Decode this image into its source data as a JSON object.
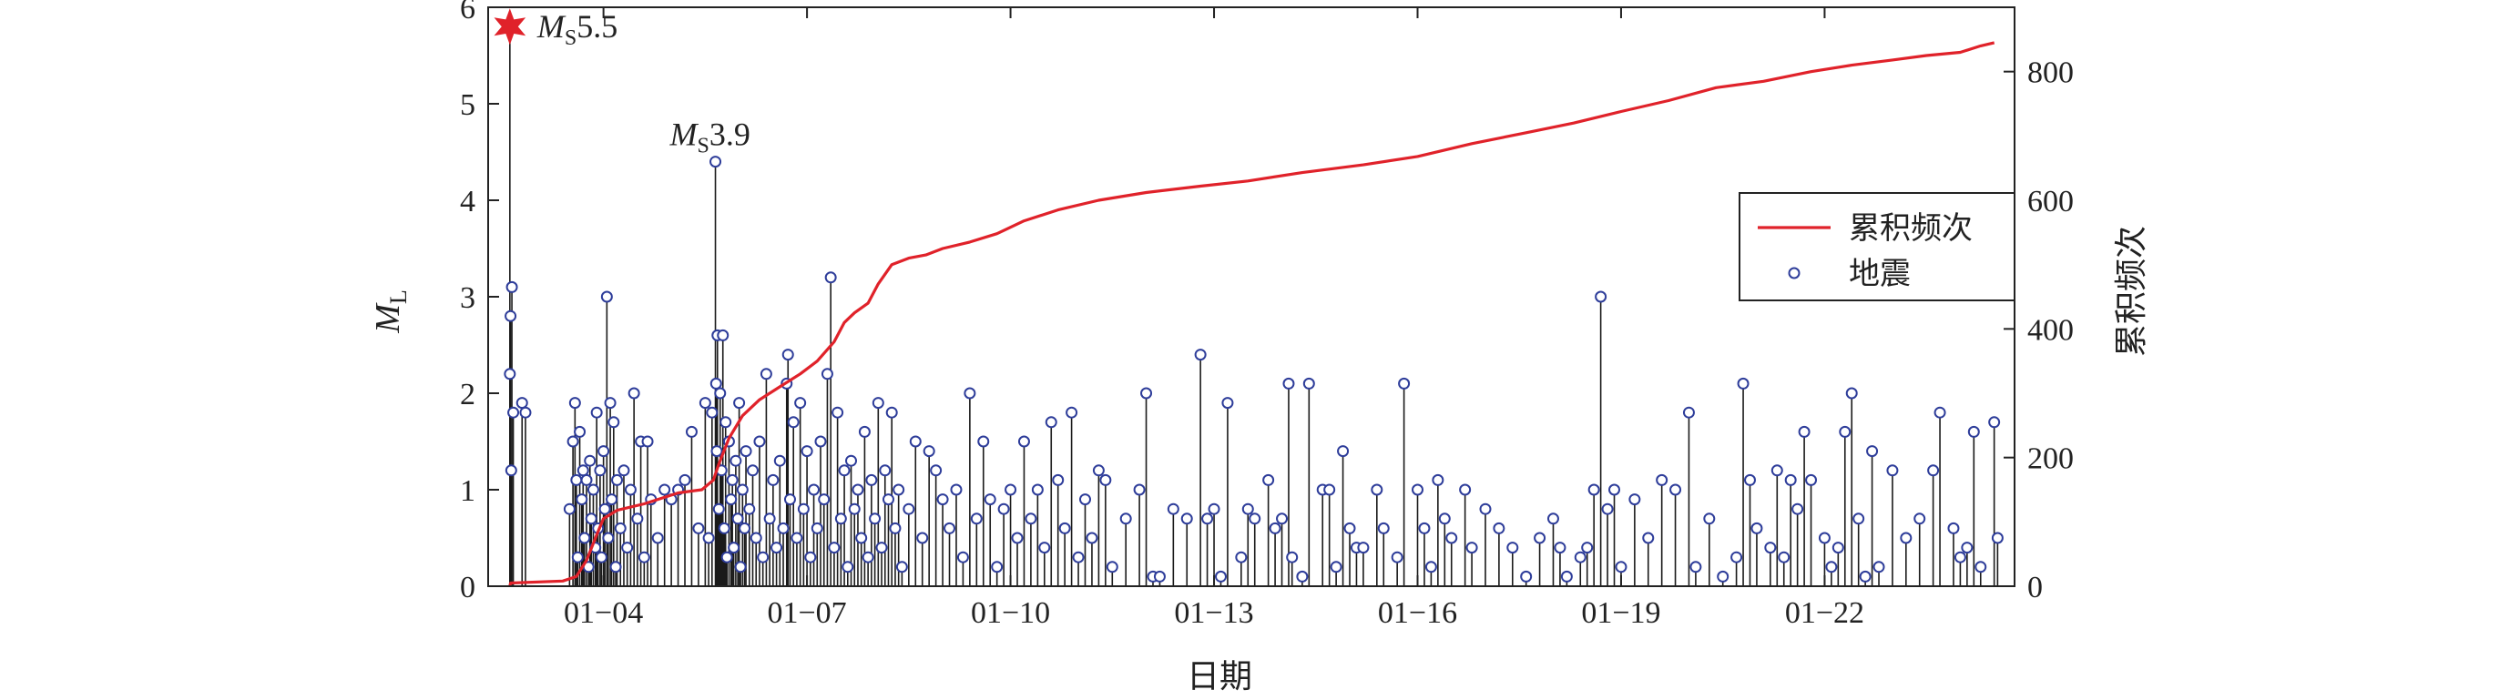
{
  "chart_data": {
    "type": "stem + line",
    "xlabel": "日期",
    "ylabel_main": "M",
    "ylabel_sub": "L",
    "y2label": "累积频次",
    "xticks": [
      "01−04",
      "01−07",
      "01−10",
      "01−13",
      "01−16",
      "01−19",
      "01−22"
    ],
    "xtick_days": [
      4,
      7,
      10,
      13,
      16,
      19,
      22
    ],
    "xlim": [
      2.3,
      24.8
    ],
    "ylim": [
      0,
      6
    ],
    "y2lim": [
      0,
      900
    ],
    "yticks": [
      "0",
      "1",
      "2",
      "3",
      "4",
      "5",
      "6"
    ],
    "y2ticks": [
      "0",
      "200",
      "400",
      "600",
      "800"
    ],
    "legend": {
      "placement": "right",
      "line_label": "累积频次",
      "marker_label": "地震"
    },
    "annotations": [
      {
        "main": "M",
        "sub": "S",
        "value": "5.5",
        "x": 2.62,
        "y": 5.8
      },
      {
        "main": "M",
        "sub": "S",
        "value": "3.9",
        "x": 5.65,
        "y": 4.4
      }
    ],
    "colors": {
      "line": "#e0222a",
      "marker": "#2e3d9a",
      "stem": "#1a1a1a",
      "star": "#e0222a"
    },
    "mainshock": {
      "x": 2.62,
      "y": 5.8
    },
    "cumulative": {
      "x": [
        2.62,
        2.63,
        3.4,
        3.6,
        3.75,
        3.9,
        4.0,
        4.2,
        4.6,
        5.1,
        5.45,
        5.62,
        5.7,
        5.85,
        6.05,
        6.3,
        6.6,
        6.9,
        7.15,
        7.4,
        7.55,
        7.7,
        7.9,
        8.05,
        8.25,
        8.5,
        8.75,
        9.0,
        9.4,
        9.8,
        10.2,
        10.7,
        11.3,
        12.0,
        12.8,
        13.5,
        14.3,
        15.2,
        16.0,
        16.8,
        17.6,
        18.3,
        19.0,
        19.7,
        20.4,
        21.1,
        21.8,
        22.4,
        23.0,
        23.5,
        24.0,
        24.3,
        24.5
      ],
      "y": [
        0,
        5,
        8,
        15,
        40,
        80,
        105,
        118,
        128,
        145,
        150,
        165,
        190,
        230,
        265,
        290,
        310,
        330,
        350,
        380,
        410,
        425,
        440,
        470,
        500,
        510,
        515,
        525,
        535,
        548,
        568,
        585,
        600,
        612,
        622,
        630,
        643,
        655,
        668,
        688,
        705,
        720,
        738,
        755,
        775,
        785,
        800,
        810,
        818,
        825,
        830,
        840,
        845
      ]
    },
    "quakes": [
      {
        "x": 2.62,
        "y": 5.8
      },
      {
        "x": 2.62,
        "y": 2.2
      },
      {
        "x": 2.63,
        "y": 2.8
      },
      {
        "x": 2.64,
        "y": 1.2
      },
      {
        "x": 2.65,
        "y": 3.1
      },
      {
        "x": 2.67,
        "y": 1.8
      },
      {
        "x": 2.8,
        "y": 1.9
      },
      {
        "x": 2.85,
        "y": 1.8
      },
      {
        "x": 3.5,
        "y": 0.8
      },
      {
        "x": 3.55,
        "y": 1.5
      },
      {
        "x": 3.58,
        "y": 1.9
      },
      {
        "x": 3.6,
        "y": 1.1
      },
      {
        "x": 3.62,
        "y": 0.3
      },
      {
        "x": 3.65,
        "y": 1.6
      },
      {
        "x": 3.68,
        "y": 0.9
      },
      {
        "x": 3.7,
        "y": 1.2
      },
      {
        "x": 3.72,
        "y": 0.5
      },
      {
        "x": 3.75,
        "y": 1.1
      },
      {
        "x": 3.78,
        "y": 0.2
      },
      {
        "x": 3.8,
        "y": 1.3
      },
      {
        "x": 3.82,
        "y": 0.7
      },
      {
        "x": 3.85,
        "y": 1.0
      },
      {
        "x": 3.88,
        "y": 0.4
      },
      {
        "x": 3.9,
        "y": 1.8
      },
      {
        "x": 3.92,
        "y": 0.6
      },
      {
        "x": 3.95,
        "y": 1.2
      },
      {
        "x": 3.97,
        "y": 0.3
      },
      {
        "x": 4.0,
        "y": 1.4
      },
      {
        "x": 4.02,
        "y": 0.8
      },
      {
        "x": 4.05,
        "y": 3.0
      },
      {
        "x": 4.07,
        "y": 0.5
      },
      {
        "x": 4.1,
        "y": 1.9
      },
      {
        "x": 4.12,
        "y": 0.9
      },
      {
        "x": 4.15,
        "y": 1.7
      },
      {
        "x": 4.18,
        "y": 0.2
      },
      {
        "x": 4.2,
        "y": 1.1
      },
      {
        "x": 4.25,
        "y": 0.6
      },
      {
        "x": 4.3,
        "y": 1.2
      },
      {
        "x": 4.35,
        "y": 0.4
      },
      {
        "x": 4.4,
        "y": 1.0
      },
      {
        "x": 4.45,
        "y": 2.0
      },
      {
        "x": 4.5,
        "y": 0.7
      },
      {
        "x": 4.55,
        "y": 1.5
      },
      {
        "x": 4.6,
        "y": 0.3
      },
      {
        "x": 4.65,
        "y": 1.5
      },
      {
        "x": 4.7,
        "y": 0.9
      },
      {
        "x": 4.8,
        "y": 0.5
      },
      {
        "x": 4.9,
        "y": 1.0
      },
      {
        "x": 5.0,
        "y": 0.9
      },
      {
        "x": 5.1,
        "y": 1.0
      },
      {
        "x": 5.2,
        "y": 1.1
      },
      {
        "x": 5.3,
        "y": 1.6
      },
      {
        "x": 5.4,
        "y": 0.6
      },
      {
        "x": 5.5,
        "y": 1.9
      },
      {
        "x": 5.55,
        "y": 0.5
      },
      {
        "x": 5.6,
        "y": 1.8
      },
      {
        "x": 5.65,
        "y": 4.4
      },
      {
        "x": 5.66,
        "y": 2.1
      },
      {
        "x": 5.67,
        "y": 1.4
      },
      {
        "x": 5.68,
        "y": 2.6
      },
      {
        "x": 5.7,
        "y": 0.8
      },
      {
        "x": 5.72,
        "y": 2.0
      },
      {
        "x": 5.74,
        "y": 1.2
      },
      {
        "x": 5.76,
        "y": 2.6
      },
      {
        "x": 5.78,
        "y": 0.6
      },
      {
        "x": 5.8,
        "y": 1.7
      },
      {
        "x": 5.82,
        "y": 0.3
      },
      {
        "x": 5.85,
        "y": 1.5
      },
      {
        "x": 5.88,
        "y": 0.9
      },
      {
        "x": 5.9,
        "y": 1.1
      },
      {
        "x": 5.92,
        "y": 0.4
      },
      {
        "x": 5.95,
        "y": 1.3
      },
      {
        "x": 5.98,
        "y": 0.7
      },
      {
        "x": 6.0,
        "y": 1.9
      },
      {
        "x": 6.02,
        "y": 0.2
      },
      {
        "x": 6.05,
        "y": 1.0
      },
      {
        "x": 6.08,
        "y": 0.6
      },
      {
        "x": 6.1,
        "y": 1.4
      },
      {
        "x": 6.15,
        "y": 0.8
      },
      {
        "x": 6.2,
        "y": 1.2
      },
      {
        "x": 6.25,
        "y": 0.5
      },
      {
        "x": 6.3,
        "y": 1.5
      },
      {
        "x": 6.35,
        "y": 0.3
      },
      {
        "x": 6.4,
        "y": 2.2
      },
      {
        "x": 6.45,
        "y": 0.7
      },
      {
        "x": 6.5,
        "y": 1.1
      },
      {
        "x": 6.55,
        "y": 0.4
      },
      {
        "x": 6.6,
        "y": 1.3
      },
      {
        "x": 6.65,
        "y": 0.6
      },
      {
        "x": 6.7,
        "y": 2.1
      },
      {
        "x": 6.72,
        "y": 2.4
      },
      {
        "x": 6.75,
        "y": 0.9
      },
      {
        "x": 6.8,
        "y": 1.7
      },
      {
        "x": 6.85,
        "y": 0.5
      },
      {
        "x": 6.9,
        "y": 1.9
      },
      {
        "x": 6.95,
        "y": 0.8
      },
      {
        "x": 7.0,
        "y": 1.4
      },
      {
        "x": 7.05,
        "y": 0.3
      },
      {
        "x": 7.1,
        "y": 1.0
      },
      {
        "x": 7.15,
        "y": 0.6
      },
      {
        "x": 7.2,
        "y": 1.5
      },
      {
        "x": 7.25,
        "y": 0.9
      },
      {
        "x": 7.3,
        "y": 2.2
      },
      {
        "x": 7.35,
        "y": 3.2
      },
      {
        "x": 7.4,
        "y": 0.4
      },
      {
        "x": 7.45,
        "y": 1.8
      },
      {
        "x": 7.5,
        "y": 0.7
      },
      {
        "x": 7.55,
        "y": 1.2
      },
      {
        "x": 7.6,
        "y": 0.2
      },
      {
        "x": 7.65,
        "y": 1.3
      },
      {
        "x": 7.7,
        "y": 0.8
      },
      {
        "x": 7.75,
        "y": 1.0
      },
      {
        "x": 7.8,
        "y": 0.5
      },
      {
        "x": 7.85,
        "y": 1.6
      },
      {
        "x": 7.9,
        "y": 0.3
      },
      {
        "x": 7.95,
        "y": 1.1
      },
      {
        "x": 8.0,
        "y": 0.7
      },
      {
        "x": 8.05,
        "y": 1.9
      },
      {
        "x": 8.1,
        "y": 0.4
      },
      {
        "x": 8.15,
        "y": 1.2
      },
      {
        "x": 8.2,
        "y": 0.9
      },
      {
        "x": 8.25,
        "y": 1.8
      },
      {
        "x": 8.3,
        "y": 0.6
      },
      {
        "x": 8.35,
        "y": 1.0
      },
      {
        "x": 8.4,
        "y": 0.2
      },
      {
        "x": 8.5,
        "y": 0.8
      },
      {
        "x": 8.6,
        "y": 1.5
      },
      {
        "x": 8.7,
        "y": 0.5
      },
      {
        "x": 8.8,
        "y": 1.4
      },
      {
        "x": 8.9,
        "y": 1.2
      },
      {
        "x": 9.0,
        "y": 0.9
      },
      {
        "x": 9.1,
        "y": 0.6
      },
      {
        "x": 9.2,
        "y": 1.0
      },
      {
        "x": 9.3,
        "y": 0.3
      },
      {
        "x": 9.4,
        "y": 2.0
      },
      {
        "x": 9.5,
        "y": 0.7
      },
      {
        "x": 9.6,
        "y": 1.5
      },
      {
        "x": 9.7,
        "y": 0.9
      },
      {
        "x": 9.8,
        "y": 0.2
      },
      {
        "x": 9.9,
        "y": 0.8
      },
      {
        "x": 10.0,
        "y": 1.0
      },
      {
        "x": 10.1,
        "y": 0.5
      },
      {
        "x": 10.2,
        "y": 1.5
      },
      {
        "x": 10.3,
        "y": 0.7
      },
      {
        "x": 10.4,
        "y": 1.0
      },
      {
        "x": 10.5,
        "y": 0.4
      },
      {
        "x": 10.6,
        "y": 1.7
      },
      {
        "x": 10.7,
        "y": 1.1
      },
      {
        "x": 10.8,
        "y": 0.6
      },
      {
        "x": 10.9,
        "y": 1.8
      },
      {
        "x": 11.0,
        "y": 0.3
      },
      {
        "x": 11.1,
        "y": 0.9
      },
      {
        "x": 11.2,
        "y": 0.5
      },
      {
        "x": 11.3,
        "y": 1.2
      },
      {
        "x": 11.4,
        "y": 1.1
      },
      {
        "x": 11.5,
        "y": 0.2
      },
      {
        "x": 11.7,
        "y": 0.7
      },
      {
        "x": 11.9,
        "y": 1.0
      },
      {
        "x": 12.0,
        "y": 2.0
      },
      {
        "x": 12.1,
        "y": 0.1
      },
      {
        "x": 12.2,
        "y": 0.1
      },
      {
        "x": 12.4,
        "y": 0.8
      },
      {
        "x": 12.6,
        "y": 0.7
      },
      {
        "x": 12.8,
        "y": 2.4
      },
      {
        "x": 12.9,
        "y": 0.7
      },
      {
        "x": 13.0,
        "y": 0.8
      },
      {
        "x": 13.1,
        "y": 0.1
      },
      {
        "x": 13.2,
        "y": 1.9
      },
      {
        "x": 13.4,
        "y": 0.3
      },
      {
        "x": 13.5,
        "y": 0.8
      },
      {
        "x": 13.6,
        "y": 0.7
      },
      {
        "x": 13.8,
        "y": 1.1
      },
      {
        "x": 13.9,
        "y": 0.6
      },
      {
        "x": 14.0,
        "y": 0.7
      },
      {
        "x": 14.1,
        "y": 2.1
      },
      {
        "x": 14.15,
        "y": 0.3
      },
      {
        "x": 14.3,
        "y": 0.1
      },
      {
        "x": 14.4,
        "y": 2.1
      },
      {
        "x": 14.6,
        "y": 1.0
      },
      {
        "x": 14.7,
        "y": 1.0
      },
      {
        "x": 14.8,
        "y": 0.2
      },
      {
        "x": 14.9,
        "y": 1.4
      },
      {
        "x": 15.0,
        "y": 0.6
      },
      {
        "x": 15.1,
        "y": 0.4
      },
      {
        "x": 15.2,
        "y": 0.4
      },
      {
        "x": 15.4,
        "y": 1.0
      },
      {
        "x": 15.5,
        "y": 0.6
      },
      {
        "x": 15.7,
        "y": 0.3
      },
      {
        "x": 15.8,
        "y": 2.1
      },
      {
        "x": 16.0,
        "y": 1.0
      },
      {
        "x": 16.1,
        "y": 0.6
      },
      {
        "x": 16.2,
        "y": 0.2
      },
      {
        "x": 16.3,
        "y": 1.1
      },
      {
        "x": 16.4,
        "y": 0.7
      },
      {
        "x": 16.5,
        "y": 0.5
      },
      {
        "x": 16.7,
        "y": 1.0
      },
      {
        "x": 16.8,
        "y": 0.4
      },
      {
        "x": 17.0,
        "y": 0.8
      },
      {
        "x": 17.2,
        "y": 0.6
      },
      {
        "x": 17.4,
        "y": 0.4
      },
      {
        "x": 17.6,
        "y": 0.1
      },
      {
        "x": 17.8,
        "y": 0.5
      },
      {
        "x": 18.0,
        "y": 0.7
      },
      {
        "x": 18.1,
        "y": 0.4
      },
      {
        "x": 18.2,
        "y": 0.1
      },
      {
        "x": 18.4,
        "y": 0.3
      },
      {
        "x": 18.5,
        "y": 0.4
      },
      {
        "x": 18.6,
        "y": 1.0
      },
      {
        "x": 18.7,
        "y": 3.0
      },
      {
        "x": 18.8,
        "y": 0.8
      },
      {
        "x": 18.9,
        "y": 1.0
      },
      {
        "x": 19.0,
        "y": 0.2
      },
      {
        "x": 19.2,
        "y": 0.9
      },
      {
        "x": 19.4,
        "y": 0.5
      },
      {
        "x": 19.6,
        "y": 1.1
      },
      {
        "x": 19.8,
        "y": 1.0
      },
      {
        "x": 20.0,
        "y": 1.8
      },
      {
        "x": 20.1,
        "y": 0.2
      },
      {
        "x": 20.3,
        "y": 0.7
      },
      {
        "x": 20.5,
        "y": 0.1
      },
      {
        "x": 20.7,
        "y": 0.3
      },
      {
        "x": 20.8,
        "y": 2.1
      },
      {
        "x": 20.9,
        "y": 1.1
      },
      {
        "x": 21.0,
        "y": 0.6
      },
      {
        "x": 21.2,
        "y": 0.4
      },
      {
        "x": 21.3,
        "y": 1.2
      },
      {
        "x": 21.4,
        "y": 0.3
      },
      {
        "x": 21.5,
        "y": 1.1
      },
      {
        "x": 21.6,
        "y": 0.8
      },
      {
        "x": 21.7,
        "y": 1.6
      },
      {
        "x": 21.8,
        "y": 1.1
      },
      {
        "x": 22.0,
        "y": 0.5
      },
      {
        "x": 22.1,
        "y": 0.2
      },
      {
        "x": 22.2,
        "y": 0.4
      },
      {
        "x": 22.3,
        "y": 1.6
      },
      {
        "x": 22.4,
        "y": 2.0
      },
      {
        "x": 22.5,
        "y": 0.7
      },
      {
        "x": 22.6,
        "y": 0.1
      },
      {
        "x": 22.7,
        "y": 1.4
      },
      {
        "x": 22.8,
        "y": 0.2
      },
      {
        "x": 23.0,
        "y": 1.2
      },
      {
        "x": 23.2,
        "y": 0.5
      },
      {
        "x": 23.4,
        "y": 0.7
      },
      {
        "x": 23.6,
        "y": 1.2
      },
      {
        "x": 23.7,
        "y": 1.8
      },
      {
        "x": 23.9,
        "y": 0.6
      },
      {
        "x": 24.0,
        "y": 0.3
      },
      {
        "x": 24.1,
        "y": 0.4
      },
      {
        "x": 24.2,
        "y": 1.6
      },
      {
        "x": 24.3,
        "y": 0.2
      },
      {
        "x": 24.5,
        "y": 1.7
      },
      {
        "x": 24.55,
        "y": 0.5
      }
    ]
  }
}
